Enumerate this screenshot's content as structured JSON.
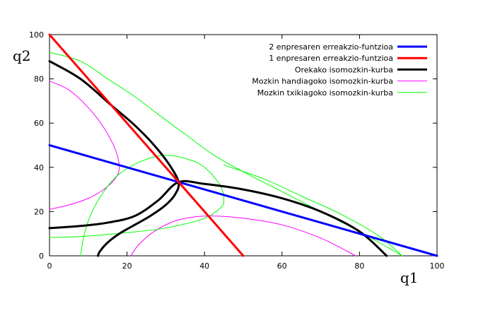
{
  "chart_data": {
    "type": "line",
    "xlabel": "q1",
    "ylabel": "q2",
    "xlim": [
      0,
      100
    ],
    "ylim": [
      0,
      100
    ],
    "xticks": [
      "0",
      "20",
      "40",
      "60",
      "80",
      "100"
    ],
    "yticks": [
      "0",
      "20",
      "40",
      "60",
      "80",
      "100"
    ],
    "grid": false,
    "legend_position": "top-right",
    "series": [
      {
        "name": "2 enpresaren erreakzio-funtzioa",
        "color": "#0000ff",
        "x": [
          0,
          100
        ],
        "y": [
          50,
          0
        ]
      },
      {
        "name": "1 enpresaren erreakzio-funtzioa",
        "color": "#ff0000",
        "x": [
          0,
          50
        ],
        "y": [
          100,
          0
        ]
      },
      {
        "name": "Orekako isomozkin-kurba",
        "color": "#000000",
        "curves": [
          {
            "x": [
              0,
              8,
              16,
              22,
              27,
              31,
              33.3,
              32.5,
              30,
              26,
              22,
              18,
              15,
              13,
              12.5
            ],
            "y": [
              88,
              80,
              68,
              59,
              50,
              41,
              33.3,
              28,
              23,
              18,
              14,
              10,
              6,
              2,
              0
            ]
          },
          {
            "x": [
              0,
              8,
              15,
              22,
              28,
              33.3,
              40,
              50,
              60,
              70,
              80,
              87
            ],
            "y": [
              12.5,
              13.5,
              15,
              18,
              25,
              33.3,
              32.5,
              30,
              26,
              20,
              11,
              0
            ]
          }
        ]
      },
      {
        "name": "Mozkin handiagoko isomozkin-kurba",
        "color": "#ff00ff",
        "curves": [
          {
            "x": [
              0,
              5,
              10,
              14,
              17,
              18,
              17,
              14,
              10,
              5,
              0
            ],
            "y": [
              79,
              75,
              67,
              58,
              48,
              40,
              35,
              30,
              26,
              23,
              21
            ]
          },
          {
            "x": [
              21,
              23,
              27,
              32,
              37,
              42,
              50,
              60,
              70,
              79
            ],
            "y": [
              0,
              5,
              11,
              15.5,
              17.5,
              18,
              17,
              14,
              8,
              0
            ]
          }
        ]
      },
      {
        "name": "Mozkin txikiagoko isomozkin-kurba",
        "color": "#00ff00",
        "curves": [
          {
            "x": [
              0,
              8,
              15,
              22,
              28,
              35,
              42,
              50,
              60,
              70,
              80,
              91
            ],
            "y": [
              92,
              88,
              80,
              72,
              64,
              55,
              46,
              38,
              29,
              20,
              11,
              0
            ]
          },
          {
            "x": [
              8,
              9,
              11,
              14,
              18,
              24,
              30,
              36,
              40,
              44,
              45,
              44,
              40,
              34,
              28,
              20,
              12,
              5,
              0
            ],
            "y": [
              0,
              10,
              20,
              29,
              37,
              43,
              45.5,
              43.5,
              40,
              32,
              25,
              21.5,
              17,
              14,
              12,
              10.5,
              9.2,
              8.5,
              8.3
            ]
          },
          {
            "x": [
              45,
              55,
              65,
              75,
              85,
              91
            ],
            "y": [
              41,
              35,
              27,
              19,
              9,
              0
            ]
          }
        ]
      }
    ]
  }
}
